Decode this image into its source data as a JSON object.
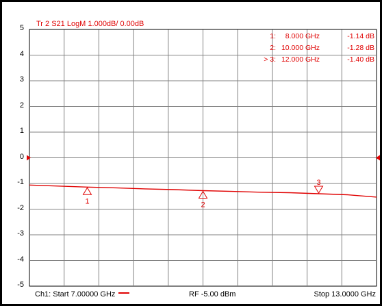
{
  "trace_title": "Tr 2  S21 LogM 1.000dB/  0.00dB",
  "markers": [
    {
      "id": "1",
      "label": "1:",
      "freq": "8.000  GHz",
      "value": "-1.14 dB",
      "x_ghz": 8.0,
      "y_db": -1.14,
      "active": false
    },
    {
      "id": "2",
      "label": "2:",
      "freq": "10.000  GHz",
      "value": "-1.28 dB",
      "x_ghz": 10.0,
      "y_db": -1.28,
      "active": false
    },
    {
      "id": "3",
      "label": "> 3:",
      "freq": "12.000  GHz",
      "value": "-1.40 dB",
      "x_ghz": 12.0,
      "y_db": -1.4,
      "active": true
    }
  ],
  "status": {
    "start": "Ch1:  Start  7.00000 GHz",
    "rf": "RF  -5.00 dBm",
    "stop": "Stop  13.0000 GHz"
  },
  "colors": {
    "trace": "#e00000",
    "grid": "#808080"
  },
  "chart_data": {
    "type": "line",
    "title": "Tr 2  S21 LogM 1.000dB/  0.00dB",
    "xlabel": "",
    "ylabel": "",
    "xlim": [
      7.0,
      13.0
    ],
    "ylim": [
      -5,
      5
    ],
    "yticks": [
      "5",
      "4",
      "3",
      "2",
      "1",
      "0",
      "-1",
      "-2",
      "-3",
      "-4",
      "-5"
    ],
    "reference_level": 0,
    "grid": true,
    "series": [
      {
        "x": [
          7.0,
          7.5,
          8.0,
          8.5,
          9.0,
          9.5,
          10.0,
          10.5,
          11.0,
          11.5,
          12.0,
          12.5,
          13.0
        ],
        "values": [
          -1.06,
          -1.1,
          -1.14,
          -1.17,
          -1.21,
          -1.24,
          -1.28,
          -1.31,
          -1.34,
          -1.36,
          -1.4,
          -1.44,
          -1.53
        ]
      }
    ]
  }
}
